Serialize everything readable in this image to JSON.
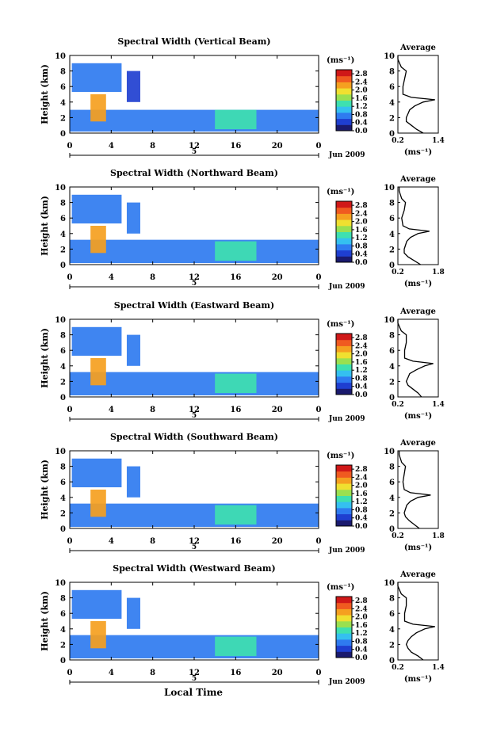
{
  "figure": {
    "xlabel": "Local Time",
    "date_label": "Jun 2009",
    "day_label": "5",
    "x_ticks": [
      "0",
      "4",
      "8",
      "12",
      "16",
      "20",
      "0"
    ],
    "y_label": "Height (km)",
    "y_ticks": [
      "0",
      "2",
      "4",
      "6",
      "8",
      "10"
    ],
    "colorbar_unit": "(ms⁻¹)",
    "colorbar_ticks": [
      "0.0",
      "0.4",
      "0.8",
      "1.2",
      "1.6",
      "2.0",
      "2.4",
      "2.8"
    ],
    "average_title": "Average",
    "average_unit": "(ms⁻¹)",
    "colors": [
      "#1a1a6e",
      "#1f3fd0",
      "#2f7bf0",
      "#35c0f0",
      "#3ee0b0",
      "#9ae050",
      "#f0e030",
      "#f5a020",
      "#f05a20",
      "#d01818"
    ]
  },
  "chart_data": [
    {
      "type": "heatmap",
      "title": "Spectral Width (Vertical Beam)",
      "xlim": [
        0,
        24
      ],
      "ylim": [
        0,
        10
      ],
      "layers": [
        {
          "t": [
            0,
            24
          ],
          "h": [
            0.2,
            3.0
          ],
          "value": 0.6
        },
        {
          "t": [
            0.2,
            5.0
          ],
          "h": [
            5.3,
            9.0
          ],
          "value": 0.7
        },
        {
          "t": [
            5.5,
            6.8
          ],
          "h": [
            4.0,
            8.0
          ],
          "value": 0.5
        },
        {
          "t": [
            2.0,
            3.5
          ],
          "h": [
            1.5,
            5.0
          ],
          "value": 2.2
        },
        {
          "t": [
            14.0,
            18.0
          ],
          "h": [
            0.5,
            3.0
          ],
          "value": 1.2
        }
      ],
      "average_profile": {
        "xlim": [
          0.2,
          1.4
        ],
        "x_ticks": [
          "0.2",
          "1.4"
        ],
        "height": [
          0,
          0.5,
          1,
          1.5,
          2,
          2.5,
          3,
          3.5,
          4,
          4.3,
          4.6,
          5,
          6,
          7,
          8,
          8.5,
          9,
          9.5,
          10
        ],
        "value": [
          0.95,
          0.75,
          0.6,
          0.45,
          0.45,
          0.5,
          0.55,
          0.7,
          0.95,
          1.3,
          0.6,
          0.35,
          0.35,
          0.4,
          0.45,
          0.3,
          0.25,
          0.2,
          0.2
        ]
      }
    },
    {
      "type": "heatmap",
      "title": "Spectral Width (Northward Beam)",
      "xlim": [
        0,
        24
      ],
      "ylim": [
        0,
        10
      ],
      "layers": [
        {
          "t": [
            0,
            24
          ],
          "h": [
            0.2,
            3.2
          ],
          "value": 0.6
        },
        {
          "t": [
            0.2,
            5.0
          ],
          "h": [
            5.3,
            9.0
          ],
          "value": 0.8
        },
        {
          "t": [
            5.5,
            6.8
          ],
          "h": [
            4.0,
            8.0
          ],
          "value": 0.6
        },
        {
          "t": [
            2.0,
            3.5
          ],
          "h": [
            1.5,
            5.0
          ],
          "value": 2.2
        },
        {
          "t": [
            14.0,
            18.0
          ],
          "h": [
            0.5,
            3.0
          ],
          "value": 1.2
        }
      ],
      "average_profile": {
        "xlim": [
          0.2,
          1.8
        ],
        "x_ticks": [
          "0.2",
          "1.8"
        ],
        "height": [
          0,
          0.5,
          1,
          1.5,
          2,
          2.5,
          3,
          3.5,
          4,
          4.3,
          4.6,
          5,
          6,
          7,
          8,
          8.5,
          9,
          9.5,
          10
        ],
        "value": [
          1.1,
          0.85,
          0.6,
          0.45,
          0.45,
          0.5,
          0.55,
          0.7,
          1.0,
          1.45,
          0.65,
          0.4,
          0.35,
          0.45,
          0.5,
          0.35,
          0.3,
          0.25,
          0.25
        ]
      }
    },
    {
      "type": "heatmap",
      "title": "Spectral Width (Eastward Beam)",
      "xlim": [
        0,
        24
      ],
      "ylim": [
        0,
        10
      ],
      "layers": [
        {
          "t": [
            0,
            24
          ],
          "h": [
            0.2,
            3.2
          ],
          "value": 0.7
        },
        {
          "t": [
            0.2,
            5.0
          ],
          "h": [
            5.3,
            9.0
          ],
          "value": 0.8
        },
        {
          "t": [
            5.5,
            6.8
          ],
          "h": [
            4.0,
            8.0
          ],
          "value": 0.6
        },
        {
          "t": [
            2.0,
            3.5
          ],
          "h": [
            1.5,
            5.0
          ],
          "value": 2.2
        },
        {
          "t": [
            14.0,
            18.0
          ],
          "h": [
            0.5,
            3.0
          ],
          "value": 1.3
        }
      ],
      "average_profile": {
        "xlim": [
          0.2,
          1.4
        ],
        "x_ticks": [
          "0.2",
          "1.4"
        ],
        "height": [
          0,
          0.5,
          1,
          1.5,
          2,
          2.5,
          3,
          3.5,
          4,
          4.3,
          4.6,
          5,
          6,
          7,
          8,
          8.5,
          9,
          9.5,
          10
        ],
        "value": [
          0.9,
          0.8,
          0.65,
          0.5,
          0.45,
          0.5,
          0.55,
          0.75,
          1.0,
          1.25,
          0.65,
          0.4,
          0.4,
          0.45,
          0.45,
          0.3,
          0.25,
          0.2,
          0.2
        ]
      }
    },
    {
      "type": "heatmap",
      "title": "Spectral Width (Southward Beam)",
      "xlim": [
        0,
        24
      ],
      "ylim": [
        0,
        10
      ],
      "layers": [
        {
          "t": [
            0,
            24
          ],
          "h": [
            0.2,
            3.2
          ],
          "value": 0.6
        },
        {
          "t": [
            0.2,
            5.0
          ],
          "h": [
            5.3,
            9.0
          ],
          "value": 0.8
        },
        {
          "t": [
            5.5,
            6.8
          ],
          "h": [
            4.0,
            8.0
          ],
          "value": 0.6
        },
        {
          "t": [
            2.0,
            3.5
          ],
          "h": [
            1.5,
            5.0
          ],
          "value": 2.2
        },
        {
          "t": [
            14.0,
            18.0
          ],
          "h": [
            0.5,
            3.0
          ],
          "value": 1.2
        }
      ],
      "average_profile": {
        "xlim": [
          0.2,
          1.8
        ],
        "x_ticks": [
          "0.2",
          "1.8"
        ],
        "height": [
          0,
          0.5,
          1,
          1.5,
          2,
          2.5,
          3,
          3.5,
          4,
          4.3,
          4.6,
          5,
          6,
          7,
          8,
          8.5,
          9,
          9.5,
          10
        ],
        "value": [
          1.05,
          0.85,
          0.65,
          0.5,
          0.45,
          0.5,
          0.55,
          0.7,
          1.0,
          1.5,
          0.7,
          0.45,
          0.4,
          0.45,
          0.5,
          0.35,
          0.3,
          0.25,
          0.25
        ]
      }
    },
    {
      "type": "heatmap",
      "title": "Spectral Width (Westward Beam)",
      "xlim": [
        0,
        24
      ],
      "ylim": [
        0,
        10
      ],
      "layers": [
        {
          "t": [
            0,
            24
          ],
          "h": [
            0.2,
            3.2
          ],
          "value": 0.6
        },
        {
          "t": [
            0.2,
            5.0
          ],
          "h": [
            5.3,
            9.0
          ],
          "value": 0.7
        },
        {
          "t": [
            5.5,
            6.8
          ],
          "h": [
            4.0,
            8.0
          ],
          "value": 0.6
        },
        {
          "t": [
            2.0,
            3.5
          ],
          "h": [
            1.5,
            5.0
          ],
          "value": 2.2
        },
        {
          "t": [
            14.0,
            18.0
          ],
          "h": [
            0.5,
            3.0
          ],
          "value": 1.2
        }
      ],
      "average_profile": {
        "xlim": [
          0.2,
          1.4
        ],
        "x_ticks": [
          "0.2",
          "1.4"
        ],
        "height": [
          0,
          0.5,
          1,
          1.5,
          2,
          2.5,
          3,
          3.5,
          4,
          4.3,
          4.6,
          5,
          6,
          7,
          8,
          8.5,
          9,
          9.5,
          10
        ],
        "value": [
          0.95,
          0.8,
          0.6,
          0.5,
          0.45,
          0.5,
          0.6,
          0.75,
          1.0,
          1.3,
          0.65,
          0.4,
          0.4,
          0.45,
          0.45,
          0.3,
          0.25,
          0.2,
          0.2
        ]
      }
    }
  ]
}
